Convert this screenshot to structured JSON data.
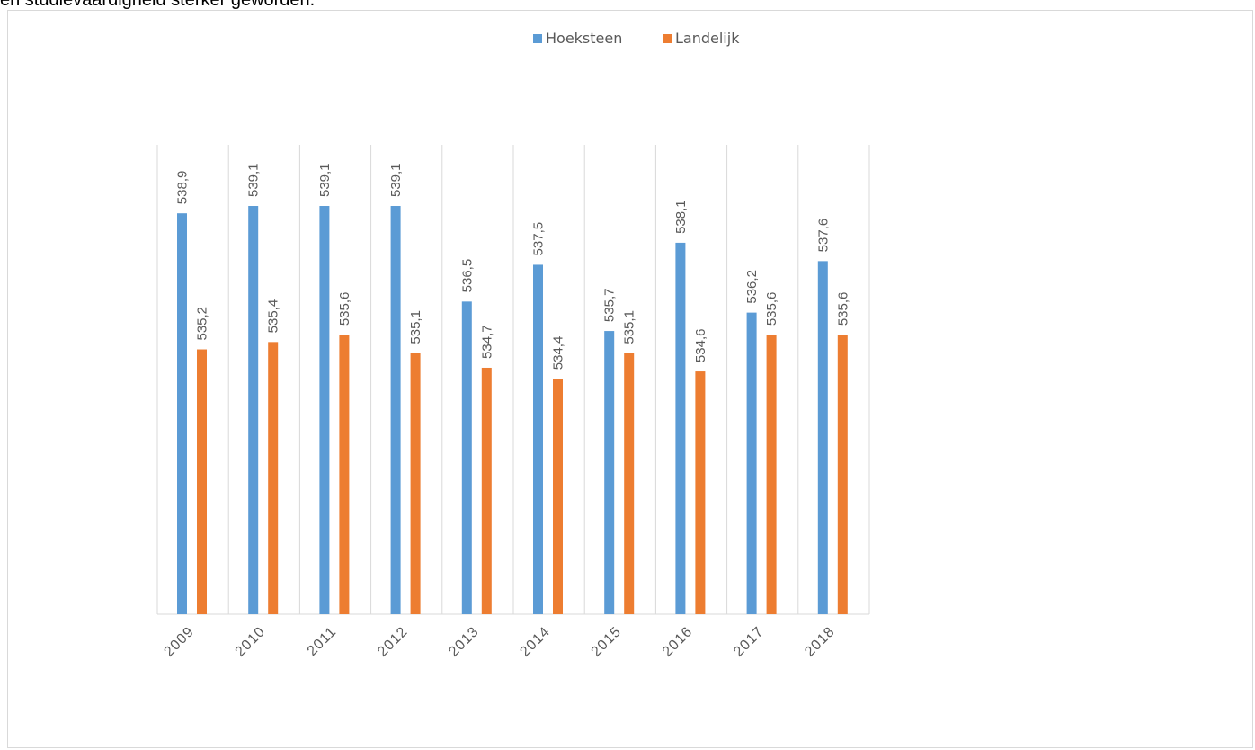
{
  "page": {
    "top_text": "en studievaardigheid sterker geworden."
  },
  "chart_data": {
    "type": "bar",
    "title": "",
    "xlabel": "",
    "ylabel": "",
    "categories": [
      "2009",
      "2010",
      "2011",
      "2012",
      "2013",
      "2014",
      "2015",
      "2016",
      "2017",
      "2018"
    ],
    "series": [
      {
        "name": "Hoeksteen",
        "color": "#5b9bd5",
        "values": [
          538.9,
          539.1,
          539.1,
          539.1,
          536.5,
          537.5,
          535.7,
          538.1,
          536.2,
          537.6
        ],
        "labels": [
          "538,9",
          "539,1",
          "539,1",
          "539,1",
          "536,5",
          "537,5",
          "535,7",
          "538,1",
          "536,2",
          "537,6"
        ]
      },
      {
        "name": "Landelijk",
        "color": "#ed7d31",
        "values": [
          535.2,
          535.4,
          535.6,
          535.1,
          534.7,
          534.4,
          535.1,
          534.6,
          535.6,
          535.6
        ],
        "labels": [
          "535,2",
          "535,4",
          "535,6",
          "535,1",
          "534,7",
          "534,4",
          "535,1",
          "534,6",
          "535,6",
          "535,6"
        ]
      }
    ],
    "ylim": [
      528,
      540
    ],
    "grid": "vertical",
    "legend": "top-center"
  }
}
